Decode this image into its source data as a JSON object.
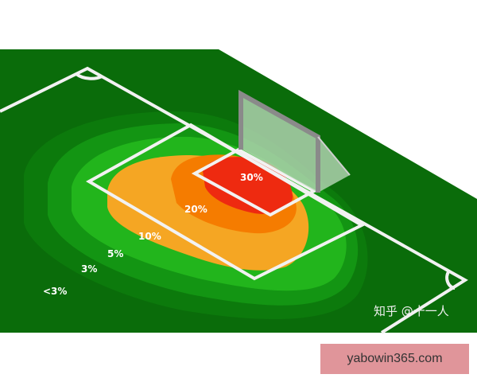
{
  "zones": [
    {
      "label": "<3%",
      "color": "#0c7a0c"
    },
    {
      "label": "3%",
      "color": "#139513"
    },
    {
      "label": "5%",
      "color": "#22b51c"
    },
    {
      "label": "10%",
      "color": "#f5a623"
    },
    {
      "label": "20%",
      "color": "#f57c00"
    },
    {
      "label": "30%",
      "color": "#ee2a10"
    }
  ],
  "field_color": "#0a6c0a",
  "watermark": "知乎 @十一人",
  "promo": "yabowin365.com"
}
